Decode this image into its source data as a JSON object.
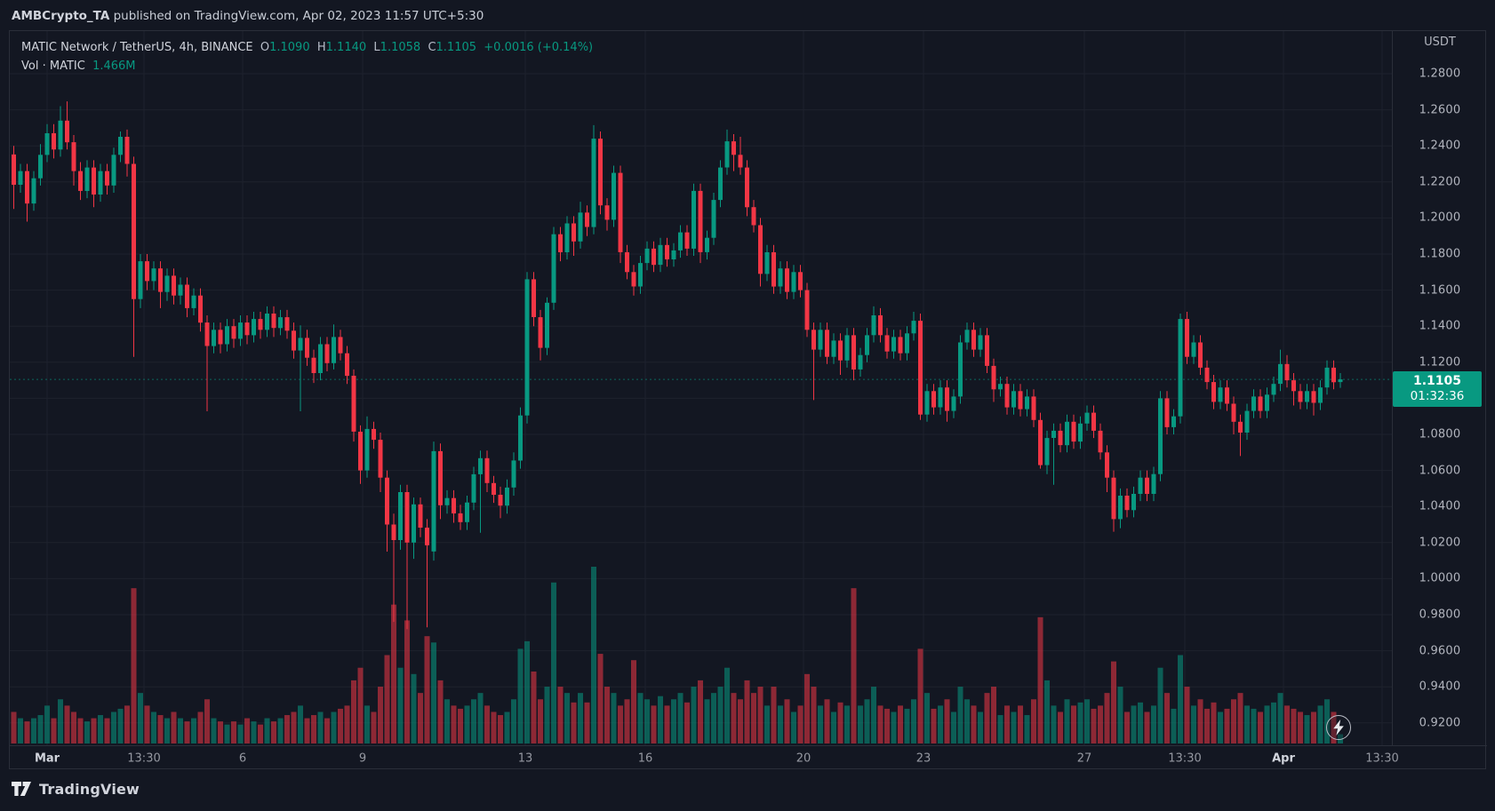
{
  "attribution": {
    "user": "AMBCrypto_TA",
    "rest": " published on TradingView.com, Apr 02, 2023 11:57 UTC+5:30"
  },
  "legend": {
    "symbol_title": "MATIC Network / TetherUS, 4h, BINANCE",
    "o_label": "O",
    "o_value": "1.1090",
    "h_label": "H",
    "h_value": "1.1140",
    "l_label": "L",
    "l_value": "1.1058",
    "c_label": "C",
    "c_value": "1.1105",
    "change": "+0.0016 (+0.14%)",
    "vol_label": "Vol · MATIC",
    "vol_value": "1.466M"
  },
  "price_scale": {
    "currency_label": "USDT",
    "badge_price": "1.1105",
    "badge_countdown": "01:32:36"
  },
  "footer": {
    "logo_text": "TradingView"
  },
  "colors": {
    "background": "#131722",
    "grid": "#1e222d",
    "frame": "#2a2e39",
    "text_primary": "#d1d4dc",
    "text_secondary": "#b2b5be",
    "up": "#089981",
    "down": "#f23645",
    "volume_up": "rgba(8,153,129,0.55)",
    "volume_down": "rgba(242,54,69,0.55)",
    "badge_bg": "#089981"
  },
  "chart_data": {
    "type": "candlestick",
    "title": "MATIC Network / TetherUS",
    "exchange": "BINANCE",
    "interval": "4h",
    "legend_ohlc": {
      "open": 1.109,
      "high": 1.114,
      "low": 1.1058,
      "close": 1.1105,
      "change": 0.0016,
      "change_pct": 0.14
    },
    "last_price": 1.1105,
    "ylim": [
      0.908,
      1.296
    ],
    "grid": true,
    "price_ticks": [
      "1.2800",
      "1.2600",
      "1.2400",
      "1.2200",
      "1.2000",
      "1.1800",
      "1.1600",
      "1.1400",
      "1.1200",
      "1.1000",
      "1.0800",
      "1.0600",
      "1.0400",
      "1.0200",
      "1.0000",
      "0.9800",
      "0.9600",
      "0.9400",
      "0.9200"
    ],
    "price_tick_values": [
      1.28,
      1.26,
      1.24,
      1.22,
      1.2,
      1.18,
      1.16,
      1.14,
      1.12,
      1.1,
      1.08,
      1.06,
      1.04,
      1.02,
      1.0,
      0.98,
      0.96,
      0.94,
      0.92
    ],
    "time_ticks": [
      {
        "label": "Mar",
        "major": true
      },
      {
        "label": "13:30",
        "major": false
      },
      {
        "label": "6",
        "major": false
      },
      {
        "label": "9",
        "major": false
      },
      {
        "label": "13",
        "major": false
      },
      {
        "label": "16",
        "major": false
      },
      {
        "label": "20",
        "major": false
      },
      {
        "label": "23",
        "major": false
      },
      {
        "label": "27",
        "major": false
      },
      {
        "label": "13:30",
        "major": false
      },
      {
        "label": "Apr",
        "major": true
      },
      {
        "label": "13:30",
        "major": false
      }
    ],
    "time_range": "Feb 28 2023 05:30 - Apr 02 2023 09:30 UTC+5:30",
    "volume_unit": "M",
    "candles": [
      [
        1.2352,
        1.24,
        1.205,
        1.2184
      ],
      [
        1.2184,
        1.23,
        1.214,
        1.226
      ],
      [
        1.226,
        1.23,
        1.198,
        1.208
      ],
      [
        1.208,
        1.226,
        1.204,
        1.222
      ],
      [
        1.222,
        1.241,
        1.218,
        1.235
      ],
      [
        1.235,
        1.252,
        1.231,
        1.247
      ],
      [
        1.247,
        1.252,
        1.233,
        1.238
      ],
      [
        1.238,
        1.262,
        1.234,
        1.254
      ],
      [
        1.254,
        1.2647,
        1.238,
        1.242
      ],
      [
        1.242,
        1.246,
        1.218,
        1.226
      ],
      [
        1.226,
        1.231,
        1.21,
        1.215
      ],
      [
        1.215,
        1.232,
        1.211,
        1.228
      ],
      [
        1.228,
        1.232,
        1.206,
        1.213
      ],
      [
        1.213,
        1.23,
        1.209,
        1.226
      ],
      [
        1.226,
        1.23,
        1.213,
        1.218
      ],
      [
        1.218,
        1.239,
        1.214,
        1.235
      ],
      [
        1.235,
        1.248,
        1.231,
        1.245
      ],
      [
        1.245,
        1.249,
        1.223,
        1.23
      ],
      [
        1.23,
        1.234,
        1.123,
        1.155
      ],
      [
        1.155,
        1.18,
        1.15,
        1.176
      ],
      [
        1.176,
        1.18,
        1.16,
        1.165
      ],
      [
        1.165,
        1.176,
        1.16,
        1.172
      ],
      [
        1.172,
        1.176,
        1.15,
        1.159
      ],
      [
        1.159,
        1.172,
        1.154,
        1.168
      ],
      [
        1.168,
        1.172,
        1.152,
        1.157
      ],
      [
        1.157,
        1.167,
        1.152,
        1.163
      ],
      [
        1.163,
        1.167,
        1.145,
        1.15
      ],
      [
        1.15,
        1.161,
        1.146,
        1.157
      ],
      [
        1.157,
        1.161,
        1.137,
        1.142
      ],
      [
        1.142,
        1.146,
        1.0928,
        1.129
      ],
      [
        1.129,
        1.142,
        1.125,
        1.138
      ],
      [
        1.138,
        1.142,
        1.125,
        1.13
      ],
      [
        1.13,
        1.144,
        1.126,
        1.14
      ],
      [
        1.14,
        1.144,
        1.128,
        1.133
      ],
      [
        1.133,
        1.146,
        1.129,
        1.142
      ],
      [
        1.142,
        1.146,
        1.13,
        1.135
      ],
      [
        1.135,
        1.148,
        1.131,
        1.144
      ],
      [
        1.144,
        1.148,
        1.133,
        1.138
      ],
      [
        1.138,
        1.151,
        1.134,
        1.147
      ],
      [
        1.147,
        1.151,
        1.134,
        1.139
      ],
      [
        1.139,
        1.149,
        1.135,
        1.145
      ],
      [
        1.145,
        1.149,
        1.133,
        1.1375
      ],
      [
        1.1375,
        1.142,
        1.122,
        1.1265
      ],
      [
        1.1265,
        1.1405,
        1.0928,
        1.1335
      ],
      [
        1.1335,
        1.138,
        1.118,
        1.1225
      ],
      [
        1.1225,
        1.127,
        1.1085,
        1.114
      ],
      [
        1.114,
        1.134,
        1.11,
        1.13
      ],
      [
        1.13,
        1.134,
        1.115,
        1.1195
      ],
      [
        1.1195,
        1.141,
        1.116,
        1.134
      ],
      [
        1.134,
        1.138,
        1.121,
        1.125
      ],
      [
        1.125,
        1.129,
        1.108,
        1.1125
      ],
      [
        1.1125,
        1.116,
        1.076,
        1.0815
      ],
      [
        1.0815,
        1.085,
        1.0525,
        1.06
      ],
      [
        1.06,
        1.09,
        1.056,
        1.083
      ],
      [
        1.083,
        1.087,
        1.072,
        1.077
      ],
      [
        1.077,
        1.081,
        1.048,
        1.056
      ],
      [
        1.056,
        1.06,
        1.015,
        1.03
      ],
      [
        1.03,
        1.036,
        0.976,
        1.0214
      ],
      [
        1.0214,
        1.052,
        1.016,
        1.048
      ],
      [
        1.048,
        1.052,
        0.972,
        1.02
      ],
      [
        1.02,
        1.045,
        1.011,
        1.0412
      ],
      [
        1.0412,
        1.045,
        1.023,
        1.0283
      ],
      [
        1.0283,
        1.033,
        0.973,
        1.0185
      ],
      [
        1.0151,
        1.076,
        1.01,
        1.0707
      ],
      [
        1.0707,
        1.075,
        1.033,
        1.0407
      ],
      [
        1.0407,
        1.049,
        1.036,
        1.0447
      ],
      [
        1.0447,
        1.049,
        1.031,
        1.0362
      ],
      [
        1.0362,
        1.041,
        1.027,
        1.0313
      ],
      [
        1.0313,
        1.046,
        1.027,
        1.0422
      ],
      [
        1.0422,
        1.062,
        1.038,
        1.0579
      ],
      [
        1.0579,
        1.071,
        1.0254,
        1.0668
      ],
      [
        1.0668,
        1.071,
        1.048,
        1.053
      ],
      [
        1.053,
        1.057,
        1.042,
        1.0465
      ],
      [
        1.0465,
        1.051,
        1.0335,
        1.0405
      ],
      [
        1.0405,
        1.055,
        1.036,
        1.0505
      ],
      [
        1.0505,
        1.07,
        1.046,
        1.0655
      ],
      [
        1.0655,
        1.095,
        1.061,
        1.0905
      ],
      [
        1.0905,
        1.17,
        1.086,
        1.166
      ],
      [
        1.166,
        1.17,
        1.14,
        1.145
      ],
      [
        1.145,
        1.149,
        1.121,
        1.128
      ],
      [
        1.128,
        1.156,
        1.124,
        1.153
      ],
      [
        1.153,
        1.195,
        1.149,
        1.191
      ],
      [
        1.191,
        1.195,
        1.176,
        1.181
      ],
      [
        1.181,
        1.201,
        1.177,
        1.197
      ],
      [
        1.197,
        1.201,
        1.179,
        1.187
      ],
      [
        1.187,
        1.209,
        1.183,
        1.203
      ],
      [
        1.203,
        1.207,
        1.19,
        1.195
      ],
      [
        1.195,
        1.2515,
        1.191,
        1.244
      ],
      [
        1.244,
        1.248,
        1.202,
        1.207
      ],
      [
        1.207,
        1.211,
        1.193,
        1.199
      ],
      [
        1.199,
        1.229,
        1.195,
        1.225
      ],
      [
        1.225,
        1.229,
        1.175,
        1.181
      ],
      [
        1.181,
        1.185,
        1.166,
        1.17
      ],
      [
        1.17,
        1.174,
        1.157,
        1.162
      ],
      [
        1.162,
        1.179,
        1.158,
        1.175
      ],
      [
        1.175,
        1.187,
        1.171,
        1.183
      ],
      [
        1.183,
        1.187,
        1.17,
        1.174
      ],
      [
        1.174,
        1.189,
        1.17,
        1.185
      ],
      [
        1.185,
        1.189,
        1.173,
        1.177
      ],
      [
        1.177,
        1.186,
        1.173,
        1.182
      ],
      [
        1.182,
        1.196,
        1.178,
        1.192
      ],
      [
        1.192,
        1.196,
        1.179,
        1.183
      ],
      [
        1.183,
        1.219,
        1.179,
        1.215
      ],
      [
        1.215,
        1.219,
        1.175,
        1.181
      ],
      [
        1.181,
        1.193,
        1.177,
        1.189
      ],
      [
        1.189,
        1.214,
        1.185,
        1.21
      ],
      [
        1.21,
        1.232,
        1.206,
        1.228
      ],
      [
        1.228,
        1.249,
        1.224,
        1.2425
      ],
      [
        1.2425,
        1.2465,
        1.226,
        1.235
      ],
      [
        1.235,
        1.245,
        1.224,
        1.228
      ],
      [
        1.228,
        1.232,
        1.201,
        1.206
      ],
      [
        1.206,
        1.21,
        1.192,
        1.196
      ],
      [
        1.196,
        1.2,
        1.162,
        1.169
      ],
      [
        1.169,
        1.185,
        1.165,
        1.181
      ],
      [
        1.181,
        1.185,
        1.158,
        1.162
      ],
      [
        1.162,
        1.176,
        1.158,
        1.172
      ],
      [
        1.172,
        1.176,
        1.155,
        1.159
      ],
      [
        1.159,
        1.174,
        1.155,
        1.17
      ],
      [
        1.17,
        1.174,
        1.156,
        1.16
      ],
      [
        1.16,
        1.164,
        1.134,
        1.138
      ],
      [
        1.138,
        1.142,
        1.099,
        1.127
      ],
      [
        1.127,
        1.142,
        1.123,
        1.138
      ],
      [
        1.138,
        1.142,
        1.119,
        1.123
      ],
      [
        1.123,
        1.136,
        1.119,
        1.132
      ],
      [
        1.132,
        1.136,
        1.113,
        1.121
      ],
      [
        1.121,
        1.139,
        1.117,
        1.135
      ],
      [
        1.135,
        1.139,
        1.11,
        1.116
      ],
      [
        1.116,
        1.128,
        1.112,
        1.124
      ],
      [
        1.124,
        1.139,
        1.12,
        1.135
      ],
      [
        1.135,
        1.151,
        1.131,
        1.146
      ],
      [
        1.146,
        1.15,
        1.131,
        1.135
      ],
      [
        1.135,
        1.139,
        1.122,
        1.126
      ],
      [
        1.126,
        1.138,
        1.122,
        1.134
      ],
      [
        1.134,
        1.138,
        1.121,
        1.125
      ],
      [
        1.125,
        1.14,
        1.121,
        1.136
      ],
      [
        1.136,
        1.148,
        1.132,
        1.143
      ],
      [
        1.143,
        1.147,
        1.088,
        1.091
      ],
      [
        1.091,
        1.108,
        1.087,
        1.104
      ],
      [
        1.104,
        1.108,
        1.091,
        1.095
      ],
      [
        1.095,
        1.11,
        1.091,
        1.106
      ],
      [
        1.106,
        1.11,
        1.087,
        1.093
      ],
      [
        1.093,
        1.105,
        1.089,
        1.101
      ],
      [
        1.101,
        1.135,
        1.097,
        1.131
      ],
      [
        1.131,
        1.142,
        1.127,
        1.138
      ],
      [
        1.138,
        1.142,
        1.123,
        1.127
      ],
      [
        1.127,
        1.139,
        1.123,
        1.135
      ],
      [
        1.135,
        1.139,
        1.114,
        1.118
      ],
      [
        1.118,
        1.122,
        1.098,
        1.105
      ],
      [
        1.105,
        1.112,
        1.101,
        1.108
      ],
      [
        1.108,
        1.112,
        1.091,
        1.095
      ],
      [
        1.095,
        1.108,
        1.091,
        1.104
      ],
      [
        1.104,
        1.108,
        1.09,
        1.094
      ],
      [
        1.094,
        1.105,
        1.09,
        1.101
      ],
      [
        1.101,
        1.105,
        1.084,
        1.088
      ],
      [
        1.088,
        1.092,
        1.061,
        1.063
      ],
      [
        1.063,
        1.082,
        1.058,
        1.078
      ],
      [
        1.078,
        1.086,
        1.052,
        1.082
      ],
      [
        1.082,
        1.086,
        1.07,
        1.074
      ],
      [
        1.074,
        1.091,
        1.07,
        1.087
      ],
      [
        1.087,
        1.091,
        1.072,
        1.076
      ],
      [
        1.076,
        1.09,
        1.072,
        1.086
      ],
      [
        1.086,
        1.096,
        1.082,
        1.092
      ],
      [
        1.092,
        1.096,
        1.078,
        1.082
      ],
      [
        1.082,
        1.086,
        1.066,
        1.07
      ],
      [
        1.07,
        1.074,
        1.048,
        1.056
      ],
      [
        1.056,
        1.06,
        1.026,
        1.033
      ],
      [
        1.033,
        1.05,
        1.028,
        1.046
      ],
      [
        1.046,
        1.05,
        1.034,
        1.038
      ],
      [
        1.038,
        1.051,
        1.034,
        1.047
      ],
      [
        1.047,
        1.06,
        1.043,
        1.056
      ],
      [
        1.056,
        1.06,
        1.043,
        1.047
      ],
      [
        1.047,
        1.062,
        1.043,
        1.058
      ],
      [
        1.058,
        1.104,
        1.054,
        1.1
      ],
      [
        1.1,
        1.104,
        1.08,
        1.084
      ],
      [
        1.084,
        1.094,
        1.08,
        1.09
      ],
      [
        1.09,
        1.147,
        1.086,
        1.144
      ],
      [
        1.144,
        1.148,
        1.119,
        1.123
      ],
      [
        1.123,
        1.135,
        1.119,
        1.131
      ],
      [
        1.131,
        1.135,
        1.113,
        1.117
      ],
      [
        1.117,
        1.121,
        1.105,
        1.109
      ],
      [
        1.109,
        1.113,
        1.094,
        1.098
      ],
      [
        1.098,
        1.11,
        1.094,
        1.106
      ],
      [
        1.106,
        1.11,
        1.093,
        1.097
      ],
      [
        1.097,
        1.101,
        1.08,
        1.087
      ],
      [
        1.087,
        1.091,
        1.068,
        1.081
      ],
      [
        1.081,
        1.097,
        1.077,
        1.093
      ],
      [
        1.093,
        1.105,
        1.089,
        1.101
      ],
      [
        1.101,
        1.105,
        1.089,
        1.093
      ],
      [
        1.093,
        1.106,
        1.089,
        1.102
      ],
      [
        1.102,
        1.112,
        1.098,
        1.108
      ],
      [
        1.108,
        1.127,
        1.104,
        1.119
      ],
      [
        1.119,
        1.124,
        1.106,
        1.11
      ],
      [
        1.11,
        1.114,
        1.096,
        1.104
      ],
      [
        1.104,
        1.108,
        1.094,
        1.098
      ],
      [
        1.098,
        1.108,
        1.094,
        1.104
      ],
      [
        1.104,
        1.108,
        1.0905,
        1.0975
      ],
      [
        1.0975,
        1.11,
        1.0935,
        1.106
      ],
      [
        1.106,
        1.121,
        1.102,
        1.117
      ],
      [
        1.117,
        1.121,
        1.105,
        1.1089
      ],
      [
        1.109,
        1.114,
        1.1058,
        1.1105
      ]
    ],
    "volumes": [
      5,
      4,
      3.5,
      4,
      4.5,
      6,
      4,
      7,
      6,
      5,
      4,
      3.5,
      4,
      4.5,
      4,
      5,
      5.5,
      6,
      24.6,
      8,
      6,
      5,
      4.5,
      4,
      5,
      4,
      3.5,
      4,
      5,
      7,
      4,
      3.5,
      3,
      3.5,
      3,
      4,
      3.5,
      3,
      4,
      3.5,
      4,
      4.5,
      5,
      6,
      4,
      4.5,
      5,
      4,
      5,
      5.5,
      6,
      10,
      12,
      6,
      5,
      9,
      14,
      22,
      12,
      19.5,
      11,
      8,
      17,
      16,
      10,
      7,
      6,
      5.5,
      6,
      7,
      8,
      6,
      5,
      4.5,
      5,
      7,
      15,
      16.2,
      11.4,
      7,
      9,
      25.5,
      9,
      8,
      6.5,
      8,
      6.5,
      28,
      14.2,
      9,
      8,
      6,
      7,
      13.2,
      8,
      7,
      6,
      7.5,
      6,
      7,
      8,
      6.5,
      9,
      10,
      7,
      8,
      9,
      12,
      8,
      7,
      10,
      8,
      9,
      6,
      9,
      6,
      7,
      5,
      6,
      11,
      9,
      6,
      7,
      5,
      6.5,
      6,
      24.6,
      6,
      7,
      9,
      6,
      5.5,
      5,
      6,
      5.5,
      7,
      15,
      8,
      5.5,
      6,
      7,
      5,
      9,
      7,
      6,
      5,
      8,
      9,
      4.5,
      6,
      5,
      6,
      4.5,
      7,
      20,
      10,
      6,
      5,
      7,
      6,
      6.5,
      7,
      5.5,
      6,
      8,
      13,
      9,
      5,
      6,
      6.5,
      5,
      6,
      12,
      8,
      5.5,
      14,
      9,
      6,
      7,
      5.5,
      6.5,
      5,
      5.5,
      7,
      8,
      6,
      5.5,
      5,
      6,
      6.5,
      8,
      6,
      5.5,
      5,
      4.5,
      5,
      6,
      7,
      5,
      1.466
    ]
  }
}
